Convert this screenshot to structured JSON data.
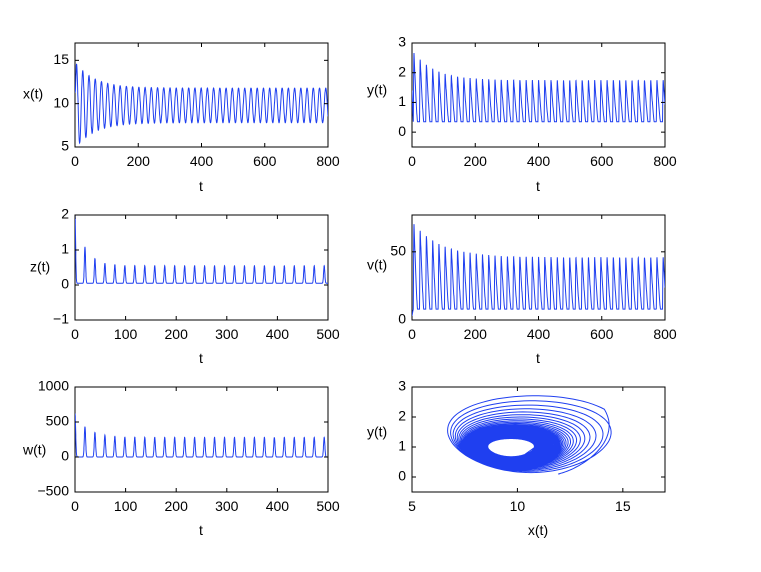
{
  "figure": {
    "series_color": "#1f3ff0",
    "panels": 6
  },
  "chart_data": [
    {
      "id": "x",
      "type": "line",
      "title": "",
      "xlabel": "t",
      "ylabel": "x(t)",
      "xlim": [
        0,
        800
      ],
      "ylim": [
        5,
        17
      ],
      "xticks": [
        0,
        200,
        400,
        600,
        800
      ],
      "yticks": [
        5,
        10,
        15
      ],
      "grid": false,
      "signal": {
        "kind": "damped-oscillation",
        "t_end": 800,
        "center": 9.8,
        "amp_start": 5.0,
        "amp_end": 2.0,
        "decay": 60,
        "period": 19.7,
        "start_value": 11.4
      }
    },
    {
      "id": "y",
      "type": "line",
      "title": "",
      "xlabel": "t",
      "ylabel": "y(t)",
      "xlim": [
        0,
        800
      ],
      "ylim": [
        -0.5,
        3
      ],
      "xticks": [
        0,
        200,
        400,
        600,
        800
      ],
      "yticks": [
        0,
        1,
        2,
        3
      ],
      "grid": false,
      "signal": {
        "kind": "relaxation-oscillation",
        "t_end": 800,
        "base": 0.35,
        "peak_start": 2.75,
        "peak_end": 1.75,
        "decay": 70,
        "period": 19.7,
        "start_value": 1.4
      }
    },
    {
      "id": "z",
      "type": "line",
      "title": "",
      "xlabel": "t",
      "ylabel": "z(t)",
      "xlim": [
        0,
        500
      ],
      "ylim": [
        -1,
        2
      ],
      "xticks": [
        0,
        100,
        200,
        300,
        400,
        500
      ],
      "yticks": [
        -1,
        0,
        1,
        2
      ],
      "grid": false,
      "signal": {
        "kind": "spike-train",
        "t_end": 500,
        "base": 0.05,
        "peak_start": 2.0,
        "peak_end": 0.55,
        "decay": 20,
        "period": 19.7,
        "width": 1.2
      }
    },
    {
      "id": "v",
      "type": "line",
      "title": "",
      "xlabel": "t",
      "ylabel": "v(t)",
      "xlim": [
        0,
        800
      ],
      "ylim": [
        0,
        77
      ],
      "xticks": [
        0,
        200,
        400,
        600,
        800
      ],
      "yticks": [
        0,
        50
      ],
      "grid": false,
      "signal": {
        "kind": "relaxation-oscillation",
        "t_end": 800,
        "base": 8,
        "peak_start": 72,
        "peak_end": 46,
        "decay": 90,
        "period": 19.7,
        "start_value": 3
      }
    },
    {
      "id": "w",
      "type": "line",
      "title": "",
      "xlabel": "t",
      "ylabel": "w(t)",
      "xlim": [
        0,
        500
      ],
      "ylim": [
        -500,
        1000
      ],
      "xticks": [
        0,
        100,
        200,
        300,
        400,
        500
      ],
      "yticks": [
        -500,
        0,
        500,
        1000
      ],
      "grid": false,
      "signal": {
        "kind": "spike-train",
        "t_end": 500,
        "base": 0,
        "peak_start": 620,
        "peak_end": 280,
        "decay": 25,
        "period": 19.7,
        "width": 1.3
      }
    },
    {
      "id": "phase",
      "type": "line",
      "title": "",
      "xlabel": "x(t)",
      "ylabel": "y(t)",
      "xlim": [
        5,
        17
      ],
      "ylim": [
        -0.5,
        3
      ],
      "xticks": [
        5,
        10,
        15
      ],
      "yticks": [
        0,
        1,
        2,
        3
      ],
      "grid": false,
      "signal": {
        "kind": "phase-spiral",
        "start": [
          12,
          0.1
        ],
        "outer_center": [
          10.8,
          1.45
        ],
        "outer_rx": 4.2,
        "outer_ry": 1.35,
        "inner_center": [
          9.7,
          0.98
        ],
        "inner_rx": 2.0,
        "inner_ry": 0.55,
        "turns": 36
      }
    }
  ]
}
